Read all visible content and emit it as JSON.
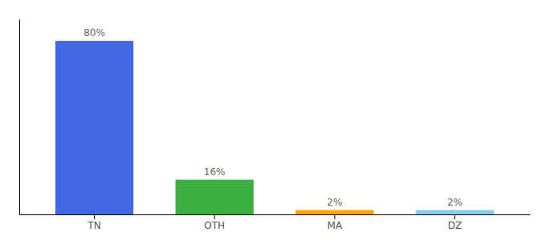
{
  "chart_data": {
    "type": "bar",
    "categories": [
      "TN",
      "OTH",
      "MA",
      "DZ"
    ],
    "values": [
      80,
      16,
      2,
      2
    ],
    "value_labels": [
      "80%",
      "16%",
      "2%",
      "2%"
    ],
    "colors": [
      "#4169E1",
      "#3CB043",
      "#FFA500",
      "#87CEEB"
    ],
    "ylim": [
      0,
      90
    ],
    "data_labels": true,
    "tick_labels": "x"
  }
}
